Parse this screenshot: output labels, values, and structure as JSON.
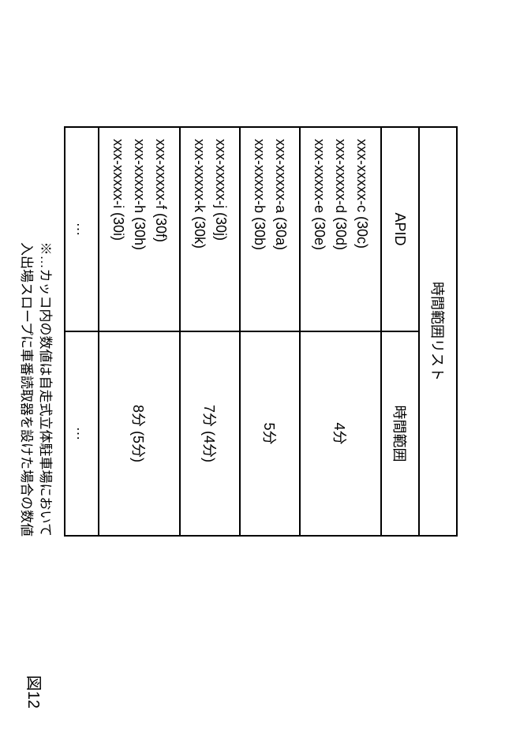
{
  "table": {
    "title": "時間範囲リスト",
    "columns": [
      "APID",
      "時間範囲"
    ],
    "rows": [
      {
        "apid": "xxx-xxxxx-c (30c)\nxxx-xxxxx-d (30d)\nxxx-xxxxx-e (30e)",
        "time": "4分"
      },
      {
        "apid": "xxx-xxxxx-a (30a)\nxxx-xxxxx-b (30b)",
        "time": "5分"
      },
      {
        "apid": "xxx-xxxxx-j (30j)\nxxx-xxxxx-k (30k)",
        "time": "7分 (4分)"
      },
      {
        "apid": "xxx-xxxxx-f (30f)\nxxx-xxxxx-h (30h)\nxxx-xxxxx-i (30i)",
        "time": "8分 (5分)"
      }
    ],
    "ellipsis": "…"
  },
  "footnote": {
    "line1": "※…カッコ内の数値は自走式立体駐車場において",
    "line2": "入出場スロープに車番読取器を設けた場合の数値"
  },
  "figure_label": "図12"
}
